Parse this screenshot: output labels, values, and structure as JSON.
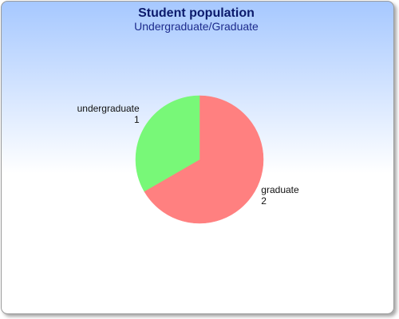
{
  "chart_data": {
    "type": "pie",
    "title": "Student population",
    "subtitle": "Undergraduate/Graduate",
    "slices": [
      {
        "label": "graduate",
        "value": 2,
        "color": "#ff8080"
      },
      {
        "label": "undergraduate",
        "value": 1,
        "color": "#78f878"
      }
    ],
    "start_angle_deg": -90,
    "direction": "clockwise",
    "background_gradient": [
      "#a6c8ff",
      "#ffffff"
    ],
    "border_color": "#9a9a9a"
  }
}
